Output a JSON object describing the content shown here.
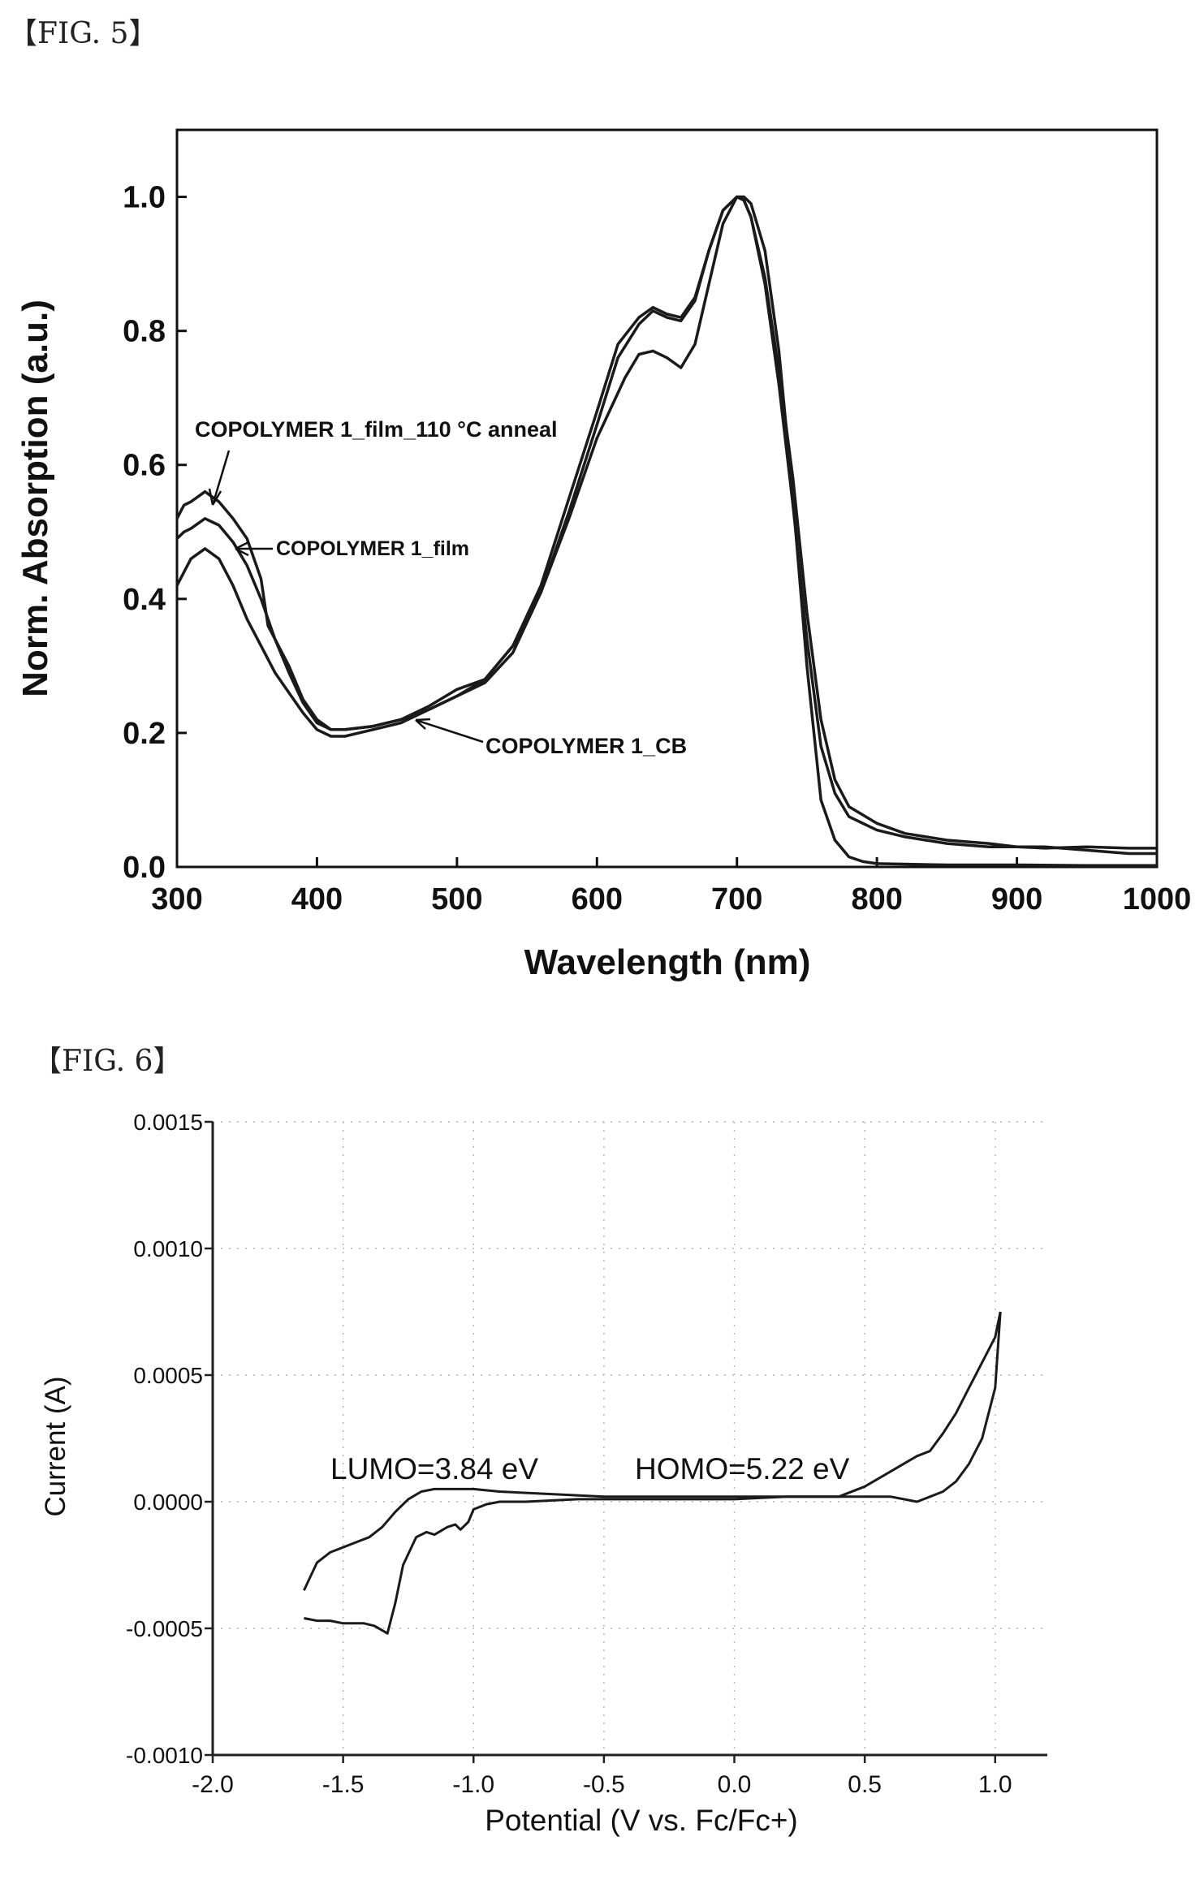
{
  "figures": {
    "fig5_label": "【FIG. 5】",
    "fig6_label": "【FIG. 6】"
  },
  "chart_data": [
    {
      "type": "line",
      "title": "",
      "xlabel": "Wavelength (nm)",
      "ylabel": "Norm. Absorption (a.u.)",
      "xlim": [
        300,
        1000
      ],
      "ylim": [
        0,
        1.1
      ],
      "xticks": [
        "300",
        "400",
        "500",
        "600",
        "700",
        "800",
        "900",
        "1000"
      ],
      "yticks": [
        "0.0",
        "0.2",
        "0.4",
        "0.6",
        "0.8",
        "1.0"
      ],
      "grid": false,
      "series": [
        {
          "name": "COPOLYMER 1_film_110 °C anneal",
          "color": "#1a1a1a",
          "x": [
            300,
            305,
            310,
            320,
            330,
            340,
            350,
            360,
            365,
            370,
            380,
            390,
            400,
            410,
            420,
            440,
            460,
            480,
            500,
            520,
            540,
            560,
            580,
            600,
            615,
            630,
            640,
            650,
            660,
            670,
            680,
            690,
            700,
            705,
            710,
            720,
            730,
            740,
            750,
            760,
            770,
            780,
            800,
            820,
            850,
            880,
            900,
            920,
            950,
            980,
            1000
          ],
          "y": [
            0.52,
            0.54,
            0.545,
            0.56,
            0.545,
            0.52,
            0.49,
            0.43,
            0.36,
            0.34,
            0.3,
            0.25,
            0.22,
            0.205,
            0.205,
            0.21,
            0.22,
            0.24,
            0.265,
            0.28,
            0.33,
            0.42,
            0.55,
            0.68,
            0.78,
            0.82,
            0.835,
            0.825,
            0.82,
            0.85,
            0.92,
            0.98,
            1.0,
            0.995,
            0.97,
            0.88,
            0.74,
            0.58,
            0.38,
            0.22,
            0.13,
            0.09,
            0.065,
            0.05,
            0.04,
            0.035,
            0.03,
            0.028,
            0.03,
            0.028,
            0.028
          ]
        },
        {
          "name": "COPOLYMER 1_film",
          "color": "#1a1a1a",
          "x": [
            300,
            305,
            310,
            320,
            330,
            340,
            350,
            360,
            370,
            380,
            390,
            400,
            410,
            420,
            440,
            460,
            480,
            500,
            520,
            540,
            560,
            580,
            600,
            615,
            630,
            640,
            650,
            660,
            670,
            680,
            690,
            700,
            705,
            710,
            720,
            730,
            740,
            750,
            760,
            770,
            780,
            800,
            820,
            850,
            880,
            900,
            920,
            950,
            980,
            1000
          ],
          "y": [
            0.49,
            0.5,
            0.505,
            0.52,
            0.51,
            0.485,
            0.45,
            0.4,
            0.34,
            0.29,
            0.245,
            0.215,
            0.205,
            0.205,
            0.21,
            0.22,
            0.235,
            0.255,
            0.275,
            0.32,
            0.41,
            0.53,
            0.66,
            0.76,
            0.81,
            0.83,
            0.82,
            0.815,
            0.845,
            0.92,
            0.98,
            1.0,
            0.995,
            0.97,
            0.87,
            0.72,
            0.54,
            0.34,
            0.18,
            0.11,
            0.075,
            0.055,
            0.045,
            0.035,
            0.03,
            0.03,
            0.03,
            0.025,
            0.02,
            0.02
          ]
        },
        {
          "name": "COPOLYMER 1_CB",
          "color": "#1a1a1a",
          "x": [
            300,
            310,
            320,
            330,
            340,
            350,
            360,
            370,
            380,
            390,
            400,
            410,
            420,
            440,
            460,
            480,
            500,
            520,
            540,
            560,
            580,
            600,
            620,
            630,
            640,
            650,
            660,
            670,
            680,
            690,
            700,
            705,
            710,
            720,
            730,
            740,
            750,
            760,
            770,
            780,
            790,
            800,
            850,
            900,
            950,
            1000
          ],
          "y": [
            0.42,
            0.46,
            0.475,
            0.46,
            0.42,
            0.37,
            0.33,
            0.29,
            0.26,
            0.23,
            0.205,
            0.195,
            0.195,
            0.205,
            0.215,
            0.235,
            0.255,
            0.28,
            0.33,
            0.41,
            0.52,
            0.64,
            0.73,
            0.765,
            0.77,
            0.76,
            0.745,
            0.78,
            0.87,
            0.96,
            1.0,
            1.0,
            0.99,
            0.92,
            0.77,
            0.55,
            0.3,
            0.1,
            0.04,
            0.015,
            0.008,
            0.005,
            0.003,
            0.003,
            0.002,
            0.002
          ]
        }
      ],
      "annotations": [
        "COPOLYMER 1_film_110 °C anneal",
        "COPOLYMER 1_film",
        "COPOLYMER 1_CB"
      ]
    },
    {
      "type": "line",
      "title": "",
      "xlabel": "Potential (V vs. Fc/Fc+)",
      "ylabel": "Current (A)",
      "xlim": [
        -2.0,
        1.2
      ],
      "ylim": [
        -0.001,
        0.0015
      ],
      "xticks": [
        "-2.0",
        "-1.5",
        "-1.0",
        "-0.5",
        "0.0",
        "0.5",
        "1.0"
      ],
      "yticks": [
        "0.0015",
        "0.0010",
        "0.0005",
        "0.0000",
        "-0.0005",
        "-0.0010"
      ],
      "grid": true,
      "series": [
        {
          "name": "",
          "color": "#1a1a1a",
          "x": [
            -1.65,
            -1.6,
            -1.55,
            -1.5,
            -1.42,
            -1.38,
            -1.33,
            -1.3,
            -1.27,
            -1.22,
            -1.18,
            -1.15,
            -1.1,
            -1.07,
            -1.05,
            -1.02,
            -1.0,
            -0.95,
            -0.9,
            -0.8,
            -0.6,
            -0.4,
            -0.2,
            0.0,
            0.2,
            0.35,
            0.5,
            0.6,
            0.65,
            0.7,
            0.75,
            0.8,
            0.85,
            0.9,
            0.95,
            1.0,
            1.02
          ],
          "y": [
            -0.00046,
            -0.00047,
            -0.00047,
            -0.00048,
            -0.00048,
            -0.00049,
            -0.00052,
            -0.0004,
            -0.00025,
            -0.00014,
            -0.00012,
            -0.00013,
            -0.0001,
            -9e-05,
            -0.00011,
            -8e-05,
            -3e-05,
            -1e-05,
            0.0,
            0.0,
            1e-05,
            1e-05,
            1e-05,
            1e-05,
            2e-05,
            2e-05,
            2e-05,
            2e-05,
            1e-05,
            0.0,
            2e-05,
            4e-05,
            8e-05,
            0.00015,
            0.00025,
            0.00045,
            0.00075
          ]
        },
        {
          "name": "",
          "color": "#1a1a1a",
          "x": [
            1.02,
            1.0,
            0.95,
            0.9,
            0.85,
            0.8,
            0.75,
            0.7,
            0.65,
            0.6,
            0.5,
            0.4,
            0.3,
            0.1,
            -0.1,
            -0.3,
            -0.5,
            -0.7,
            -0.9,
            -1.0,
            -1.1,
            -1.15,
            -1.2,
            -1.25,
            -1.3,
            -1.35,
            -1.4,
            -1.45,
            -1.5,
            -1.55,
            -1.6,
            -1.65
          ],
          "y": [
            0.00075,
            0.00065,
            0.00055,
            0.00045,
            0.00035,
            0.00027,
            0.0002,
            0.00018,
            0.00015,
            0.00012,
            6e-05,
            2e-05,
            2e-05,
            2e-05,
            2e-05,
            2e-05,
            2e-05,
            3e-05,
            4e-05,
            5e-05,
            5e-05,
            5e-05,
            4e-05,
            1e-05,
            -4e-05,
            -0.0001,
            -0.00014,
            -0.00016,
            -0.00018,
            -0.0002,
            -0.00024,
            -0.00035
          ]
        }
      ],
      "annotations": [
        "LUMO=3.84 eV",
        "HOMO=5.22 eV"
      ]
    }
  ]
}
